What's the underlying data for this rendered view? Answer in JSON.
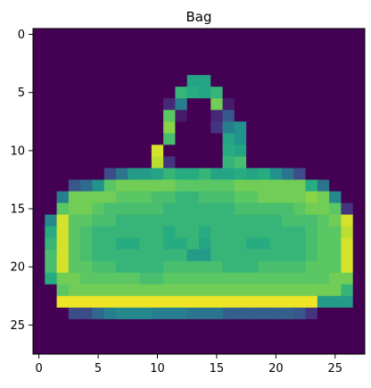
{
  "figure": {
    "title": "Bag"
  },
  "chart_data": {
    "type": "heatmap",
    "title": "Bag",
    "xlabel": "",
    "ylabel": "",
    "colormap": "viridis",
    "value_range": [
      0,
      255
    ],
    "x_ticks": [
      0,
      5,
      10,
      15,
      20,
      25
    ],
    "y_ticks": [
      0,
      5,
      10,
      15,
      20,
      25
    ],
    "x_tick_labels": [
      "0",
      "5",
      "10",
      "15",
      "20",
      "25"
    ],
    "y_tick_labels": [
      "0",
      "5",
      "10",
      "15",
      "20",
      "25"
    ],
    "grid": false,
    "shape": [
      28,
      28
    ],
    "values": [
      [
        0,
        0,
        0,
        0,
        0,
        0,
        0,
        0,
        0,
        0,
        0,
        0,
        0,
        0,
        0,
        0,
        0,
        0,
        0,
        0,
        0,
        0,
        0,
        0,
        0,
        0,
        0,
        0
      ],
      [
        0,
        0,
        0,
        0,
        0,
        0,
        0,
        0,
        0,
        0,
        0,
        0,
        0,
        0,
        0,
        0,
        0,
        0,
        0,
        0,
        0,
        0,
        0,
        0,
        0,
        0,
        0,
        0
      ],
      [
        0,
        0,
        0,
        0,
        0,
        0,
        0,
        0,
        0,
        0,
        0,
        0,
        0,
        0,
        0,
        0,
        0,
        0,
        0,
        0,
        0,
        0,
        0,
        0,
        0,
        0,
        0,
        0
      ],
      [
        0,
        0,
        0,
        0,
        0,
        0,
        0,
        0,
        0,
        0,
        0,
        0,
        0,
        0,
        0,
        0,
        0,
        0,
        0,
        0,
        0,
        0,
        0,
        0,
        0,
        0,
        0,
        0
      ],
      [
        0,
        0,
        0,
        0,
        0,
        0,
        0,
        0,
        0,
        0,
        0,
        0,
        0,
        150,
        150,
        0,
        0,
        0,
        0,
        0,
        0,
        0,
        0,
        0,
        0,
        0,
        0,
        0
      ],
      [
        0,
        0,
        0,
        0,
        0,
        0,
        0,
        0,
        0,
        0,
        0,
        0,
        170,
        160,
        150,
        170,
        0,
        0,
        0,
        0,
        0,
        0,
        0,
        0,
        0,
        0,
        0,
        0
      ],
      [
        0,
        0,
        0,
        0,
        0,
        0,
        0,
        0,
        0,
        0,
        0,
        30,
        110,
        0,
        0,
        200,
        20,
        0,
        0,
        0,
        0,
        0,
        0,
        0,
        0,
        0,
        0,
        0
      ],
      [
        0,
        0,
        0,
        0,
        0,
        0,
        0,
        0,
        0,
        0,
        0,
        190,
        20,
        0,
        0,
        30,
        70,
        0,
        0,
        0,
        0,
        0,
        0,
        0,
        0,
        0,
        0,
        0
      ],
      [
        0,
        0,
        0,
        0,
        0,
        0,
        0,
        0,
        0,
        0,
        0,
        210,
        0,
        0,
        0,
        40,
        110,
        130,
        0,
        0,
        0,
        0,
        0,
        0,
        0,
        0,
        0,
        0
      ],
      [
        0,
        0,
        0,
        0,
        0,
        0,
        0,
        0,
        0,
        0,
        0,
        180,
        0,
        0,
        0,
        0,
        150,
        130,
        0,
        0,
        0,
        0,
        0,
        0,
        0,
        0,
        0,
        0
      ],
      [
        0,
        0,
        0,
        0,
        0,
        0,
        0,
        0,
        0,
        0,
        240,
        0,
        0,
        0,
        0,
        0,
        160,
        150,
        0,
        0,
        0,
        0,
        0,
        0,
        0,
        0,
        0,
        0
      ],
      [
        0,
        0,
        0,
        0,
        0,
        0,
        0,
        0,
        0,
        0,
        230,
        40,
        0,
        0,
        0,
        0,
        170,
        180,
        0,
        0,
        0,
        0,
        0,
        0,
        0,
        0,
        0,
        0
      ],
      [
        0,
        0,
        0,
        0,
        0,
        0,
        60,
        100,
        140,
        140,
        150,
        170,
        160,
        160,
        170,
        150,
        150,
        160,
        150,
        160,
        130,
        100,
        60,
        0,
        0,
        0,
        0,
        0
      ],
      [
        0,
        0,
        0,
        70,
        90,
        130,
        190,
        200,
        200,
        200,
        200,
        200,
        190,
        190,
        190,
        190,
        190,
        200,
        200,
        200,
        200,
        200,
        200,
        160,
        100,
        0,
        0,
        0
      ],
      [
        0,
        0,
        110,
        200,
        200,
        200,
        200,
        190,
        190,
        190,
        180,
        180,
        170,
        170,
        180,
        180,
        180,
        190,
        190,
        200,
        200,
        200,
        200,
        210,
        200,
        120,
        0,
        0
      ],
      [
        0,
        0,
        190,
        200,
        200,
        190,
        180,
        180,
        180,
        180,
        180,
        170,
        170,
        170,
        170,
        170,
        170,
        180,
        180,
        180,
        180,
        180,
        190,
        200,
        200,
        190,
        40,
        0
      ],
      [
        0,
        120,
        240,
        190,
        190,
        180,
        180,
        170,
        170,
        170,
        170,
        170,
        170,
        170,
        170,
        170,
        170,
        170,
        170,
        170,
        170,
        180,
        180,
        180,
        190,
        200,
        240,
        0
      ],
      [
        0,
        160,
        240,
        190,
        180,
        170,
        170,
        170,
        170,
        170,
        170,
        160,
        170,
        170,
        160,
        170,
        170,
        170,
        170,
        170,
        170,
        170,
        170,
        180,
        190,
        190,
        230,
        0
      ],
      [
        0,
        170,
        240,
        190,
        180,
        170,
        170,
        160,
        160,
        170,
        170,
        160,
        160,
        170,
        150,
        170,
        170,
        170,
        160,
        160,
        170,
        170,
        170,
        180,
        190,
        190,
        240,
        0
      ],
      [
        0,
        180,
        240,
        190,
        180,
        170,
        170,
        170,
        170,
        170,
        170,
        170,
        170,
        140,
        140,
        170,
        170,
        170,
        170,
        170,
        170,
        170,
        170,
        180,
        190,
        190,
        240,
        0
      ],
      [
        0,
        180,
        240,
        190,
        190,
        180,
        180,
        170,
        170,
        170,
        170,
        180,
        180,
        180,
        180,
        180,
        170,
        170,
        170,
        180,
        180,
        180,
        180,
        190,
        190,
        190,
        240,
        0
      ],
      [
        0,
        160,
        200,
        200,
        190,
        190,
        190,
        190,
        190,
        180,
        180,
        190,
        190,
        190,
        190,
        190,
        190,
        190,
        190,
        190,
        190,
        190,
        190,
        190,
        190,
        200,
        200,
        0
      ],
      [
        0,
        0,
        190,
        200,
        200,
        200,
        200,
        200,
        200,
        200,
        200,
        200,
        200,
        200,
        200,
        200,
        200,
        200,
        200,
        200,
        200,
        200,
        200,
        200,
        200,
        200,
        170,
        0
      ],
      [
        0,
        0,
        250,
        250,
        250,
        250,
        250,
        250,
        250,
        250,
        250,
        250,
        250,
        250,
        250,
        250,
        250,
        250,
        250,
        250,
        250,
        250,
        250,
        250,
        140,
        140,
        140,
        0
      ],
      [
        0,
        0,
        0,
        60,
        60,
        90,
        110,
        120,
        120,
        120,
        110,
        110,
        110,
        100,
        100,
        100,
        80,
        80,
        80,
        80,
        80,
        80,
        70,
        40,
        0,
        0,
        0,
        0
      ],
      [
        0,
        0,
        0,
        0,
        0,
        0,
        0,
        0,
        0,
        0,
        0,
        0,
        0,
        0,
        0,
        0,
        0,
        0,
        0,
        0,
        0,
        0,
        0,
        0,
        0,
        0,
        0,
        0
      ],
      [
        0,
        0,
        0,
        0,
        0,
        0,
        0,
        0,
        0,
        0,
        0,
        0,
        0,
        0,
        0,
        0,
        0,
        0,
        0,
        0,
        0,
        0,
        0,
        0,
        0,
        0,
        0,
        0
      ],
      [
        0,
        0,
        0,
        0,
        0,
        0,
        0,
        0,
        0,
        0,
        0,
        0,
        0,
        0,
        0,
        0,
        0,
        0,
        0,
        0,
        0,
        0,
        0,
        0,
        0,
        0,
        0,
        0
      ]
    ]
  }
}
